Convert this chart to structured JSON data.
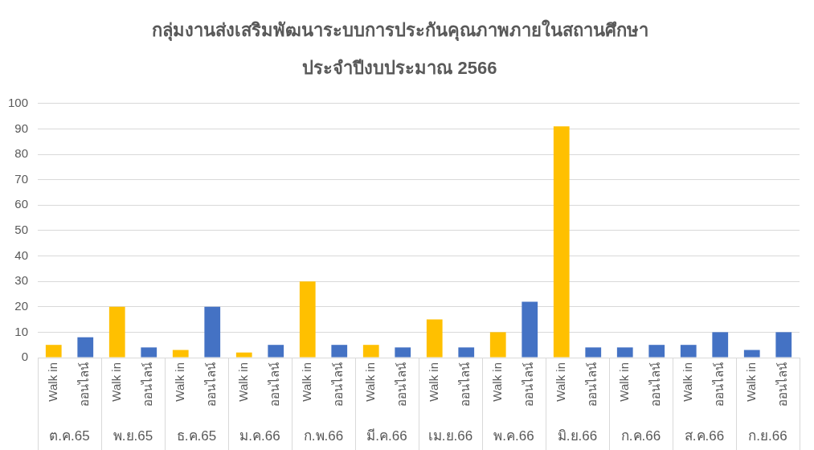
{
  "chart_data": {
    "type": "bar",
    "title": "กลุ่มงานส่งเสริมพัฒนาระบบการประกันคุณภาพภายในสถานศึกษา",
    "subtitle": "ประจำปีงบประมาณ 2566",
    "categories": [
      "Walk in",
      "ออนไลน์",
      "Walk in",
      "ออนไลน์",
      "Walk in",
      "ออนไลน์",
      "Walk in",
      "ออนไลน์",
      "Walk in",
      "ออนไลน์",
      "Walk in",
      "ออนไลน์",
      "Walk in",
      "ออนไลน์",
      "Walk in",
      "ออนไลน์",
      "Walk in",
      "ออนไลน์",
      "Walk in",
      "ออนไลน์",
      "Walk in",
      "ออนไลน์",
      "Walk in",
      "ออนไลน์"
    ],
    "values": [
      5,
      8,
      20,
      4,
      3,
      20,
      2,
      5,
      30,
      5,
      5,
      4,
      15,
      4,
      10,
      22,
      91,
      4,
      4,
      5,
      5,
      10,
      3,
      10
    ],
    "colors": [
      "#ffc000",
      "#4472c4",
      "#ffc000",
      "#4472c4",
      "#ffc000",
      "#4472c4",
      "#ffc000",
      "#4472c4",
      "#ffc000",
      "#4472c4",
      "#ffc000",
      "#4472c4",
      "#ffc000",
      "#4472c4",
      "#ffc000",
      "#4472c4",
      "#ffc000",
      "#4472c4",
      "#4472c4",
      "#4472c4",
      "#4472c4",
      "#4472c4",
      "#4472c4",
      "#4472c4"
    ],
    "ylim": [
      0,
      100
    ],
    "yticks": [
      0,
      10,
      20,
      30,
      40,
      50,
      60,
      70,
      80,
      90,
      100
    ],
    "grid": "y",
    "annotations": [
      "ต.ค.65",
      "พ.ย.65",
      "ธ.ค.65",
      "ม.ค.66",
      "ก.พ.66",
      "มี.ค.66",
      "เม.ย.66",
      "พ.ค.66",
      "มิ.ย.66",
      "ก.ค.66",
      "ส.ค.66",
      "ก.ย.66"
    ]
  }
}
